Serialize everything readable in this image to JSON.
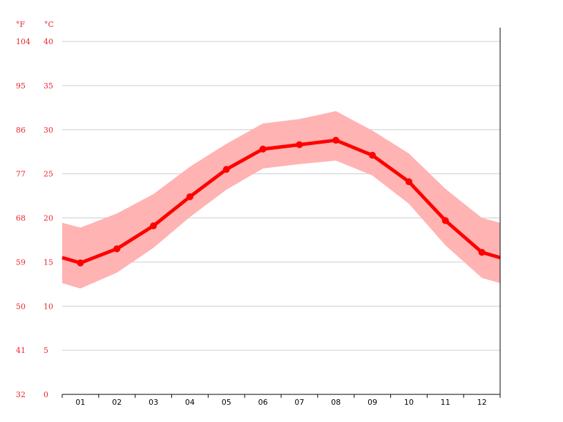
{
  "chart_data": {
    "type": "line",
    "title": "",
    "xlabel": "",
    "ylabel": "",
    "units": {
      "left": "°F",
      "right": "°C"
    },
    "categories": [
      "01",
      "02",
      "03",
      "04",
      "05",
      "06",
      "07",
      "08",
      "09",
      "10",
      "11",
      "12"
    ],
    "y_ticks_c": [
      0,
      5,
      10,
      15,
      20,
      25,
      30,
      35,
      40
    ],
    "y_ticks_f": [
      32,
      41,
      50,
      59,
      68,
      77,
      86,
      95,
      104
    ],
    "ylim": [
      0,
      40
    ],
    "grid": true,
    "series": [
      {
        "values": [
          14.9,
          16.5,
          19.1,
          22.4,
          25.5,
          27.8,
          28.3,
          28.8,
          27.1,
          24.1,
          19.7,
          16.1
        ]
      }
    ],
    "band": {
      "low": [
        12.0,
        13.8,
        16.6,
        20.1,
        23.2,
        25.6,
        26.1,
        26.5,
        24.8,
        21.6,
        16.9,
        13.2
      ],
      "high": [
        18.9,
        20.5,
        22.7,
        25.8,
        28.4,
        30.7,
        31.2,
        32.1,
        29.9,
        27.3,
        23.3,
        20.0
      ]
    },
    "colors": {
      "line": "#ff0000",
      "band": "#ffb3b3",
      "tick_text": "#e8232d",
      "grid": "#cccccc",
      "axis": "#000000"
    }
  }
}
